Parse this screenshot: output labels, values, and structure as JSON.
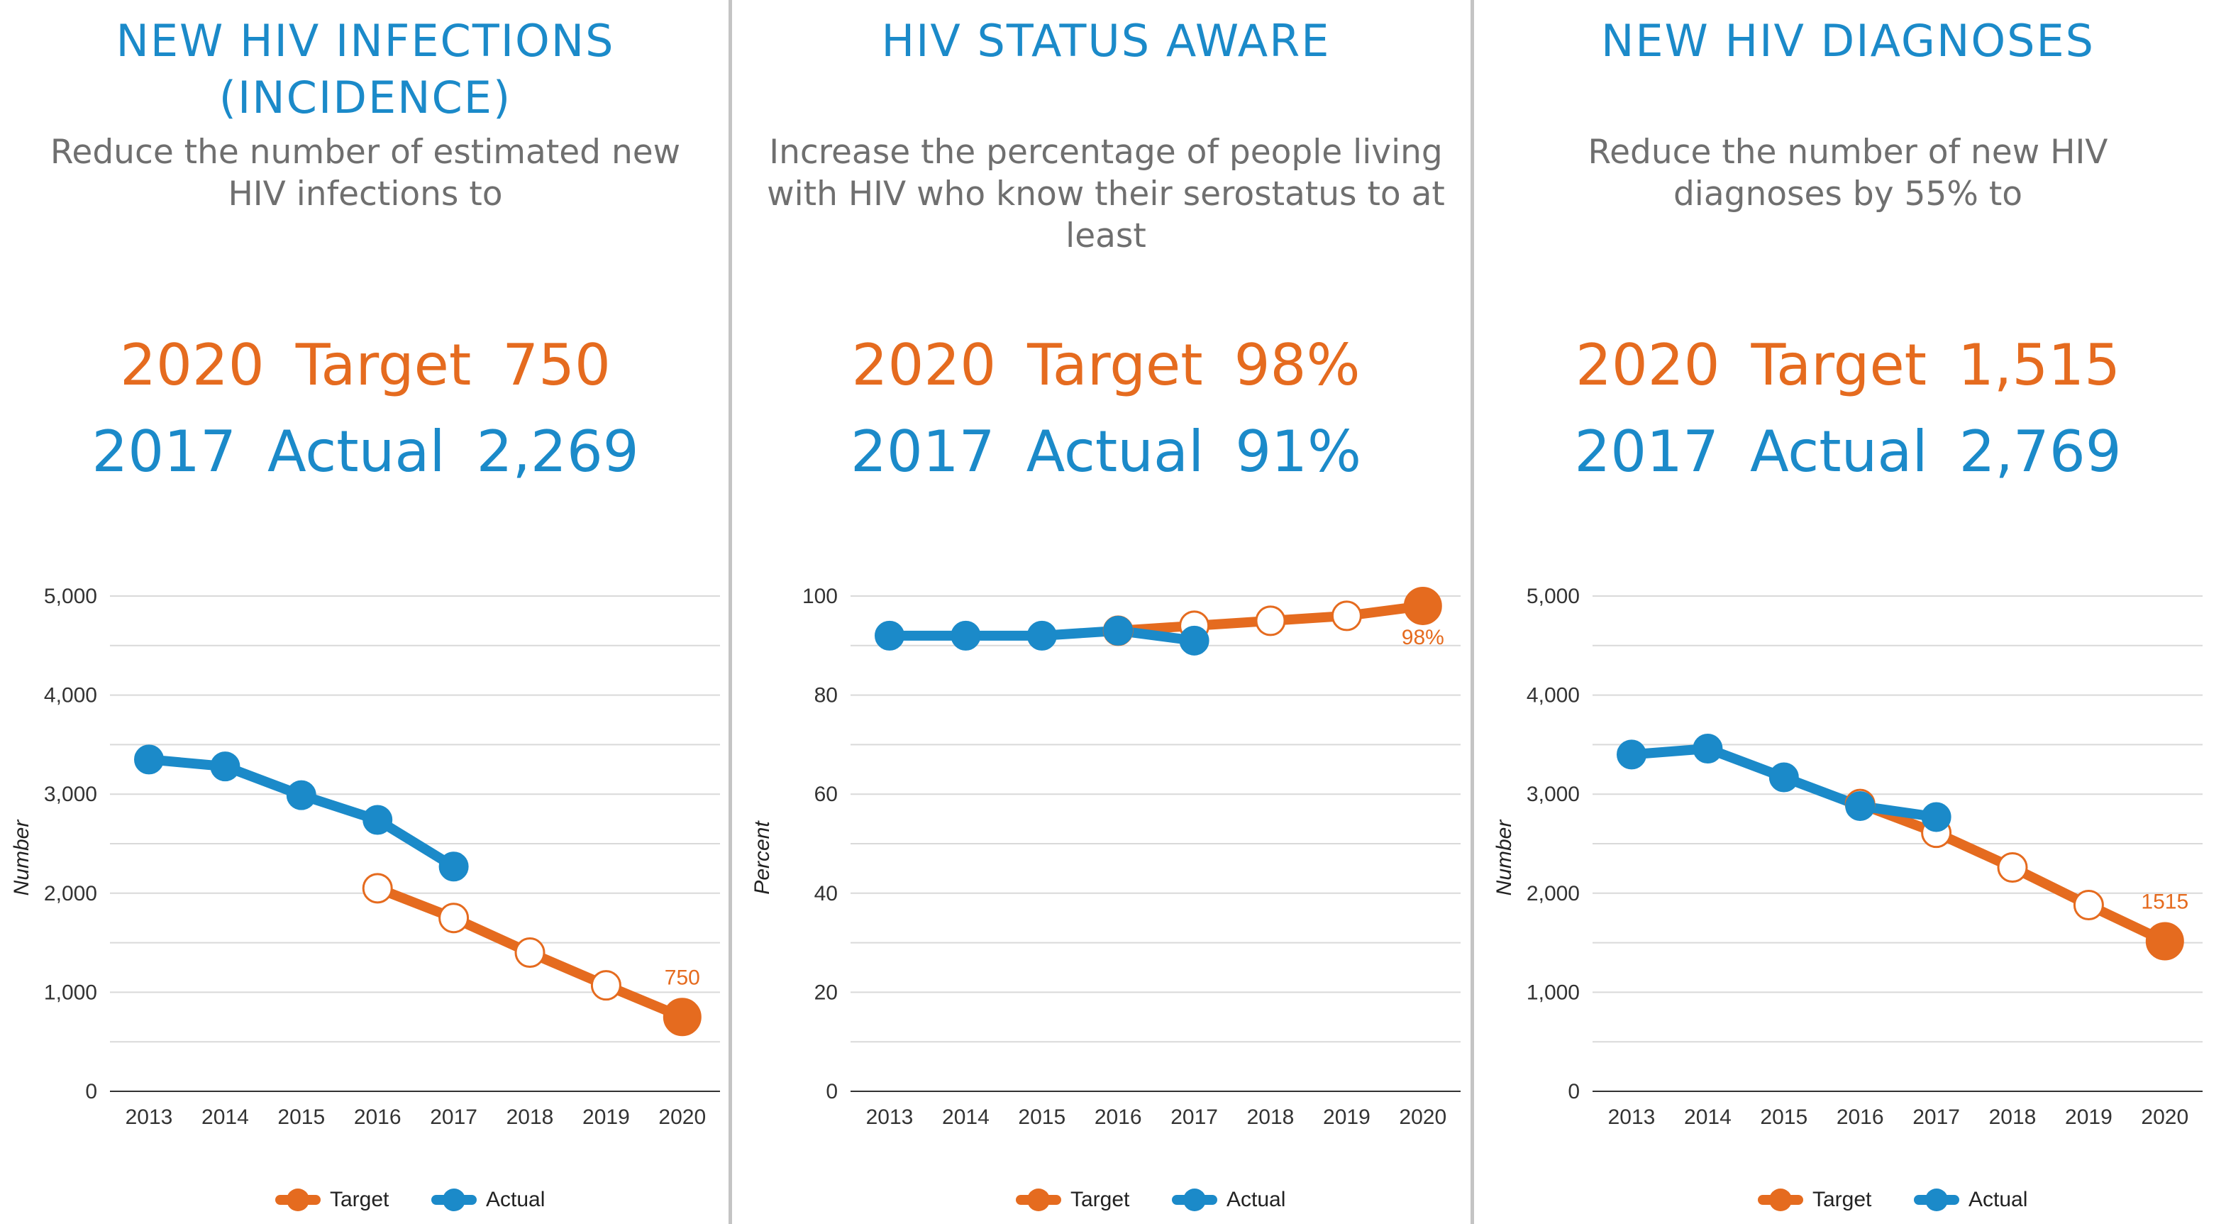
{
  "colors": {
    "target": "#e56b1f",
    "actual": "#1b8ac9",
    "grid": "#d9d9d9",
    "divider": "#c4c4c4"
  },
  "legend": {
    "target": "Target",
    "actual": "Actual"
  },
  "panels": [
    {
      "title_lines": [
        "NEW HIV INFECTIONS",
        "(INCIDENCE)"
      ],
      "subtitle": "Reduce the number of estimated new HIV infections to",
      "target_year": "2020",
      "target_label": "Target",
      "target_value": "750",
      "actual_year": "2017",
      "actual_label": "Actual",
      "actual_value": "2,269"
    },
    {
      "title_lines": [
        "HIV STATUS AWARE"
      ],
      "subtitle": "Increase the percentage of people living with HIV who know their serostatus to at least",
      "target_year": "2020",
      "target_label": "Target",
      "target_value": "98%",
      "actual_year": "2017",
      "actual_label": "Actual",
      "actual_value": "91%"
    },
    {
      "title_lines": [
        "NEW HIV DIAGNOSES"
      ],
      "subtitle": "Reduce the number of new HIV diagnoses by 55% to",
      "target_year": "2020",
      "target_label": "Target",
      "target_value": "1,515",
      "actual_year": "2017",
      "actual_label": "Actual",
      "actual_value": "2,769"
    }
  ],
  "chart_data": [
    {
      "type": "line",
      "title": "NEW HIV INFECTIONS (INCIDENCE)",
      "xlabel": "",
      "ylabel": "Number",
      "x": [
        "2013",
        "2014",
        "2015",
        "2016",
        "2017",
        "2018",
        "2019",
        "2020"
      ],
      "ylim": [
        0,
        5000
      ],
      "yticks": [
        0,
        1000,
        2000,
        3000,
        4000,
        5000
      ],
      "ytick_labels": [
        "0",
        "1,000",
        "2,000",
        "3,000",
        "4,000",
        "5,000"
      ],
      "grid": true,
      "legend_position": "bottom",
      "series": [
        {
          "name": "Target",
          "values": [
            null,
            null,
            null,
            2050,
            1750,
            1400,
            1070,
            750
          ],
          "highlight_label": "750"
        },
        {
          "name": "Actual",
          "values": [
            3350,
            3280,
            2990,
            2740,
            2269,
            null,
            null,
            null
          ]
        }
      ]
    },
    {
      "type": "line",
      "title": "HIV STATUS AWARE",
      "xlabel": "",
      "ylabel": "Percent",
      "x": [
        "2013",
        "2014",
        "2015",
        "2016",
        "2017",
        "2018",
        "2019",
        "2020"
      ],
      "ylim": [
        0,
        100
      ],
      "yticks": [
        0,
        20,
        40,
        60,
        80,
        100
      ],
      "ytick_labels": [
        "0",
        "20",
        "40",
        "60",
        "80",
        "100"
      ],
      "grid": true,
      "legend_position": "bottom",
      "series": [
        {
          "name": "Target",
          "values": [
            null,
            null,
            null,
            93,
            94,
            95,
            96,
            98
          ],
          "highlight_label": "98%"
        },
        {
          "name": "Actual",
          "values": [
            92,
            92,
            92,
            93,
            91,
            null,
            null,
            null
          ]
        }
      ]
    },
    {
      "type": "line",
      "title": "NEW HIV DIAGNOSES",
      "xlabel": "",
      "ylabel": "Number",
      "x": [
        "2013",
        "2014",
        "2015",
        "2016",
        "2017",
        "2018",
        "2019",
        "2020"
      ],
      "ylim": [
        0,
        5000
      ],
      "yticks": [
        0,
        1000,
        2000,
        3000,
        4000,
        5000
      ],
      "ytick_labels": [
        "0",
        "1,000",
        "2,000",
        "3,000",
        "4,000",
        "5,000"
      ],
      "grid": true,
      "legend_position": "bottom",
      "series": [
        {
          "name": "Target",
          "values": [
            null,
            null,
            null,
            2900,
            2610,
            2260,
            1880,
            1515
          ],
          "highlight_label": "1515"
        },
        {
          "name": "Actual",
          "values": [
            3400,
            3460,
            3170,
            2880,
            2769,
            null,
            null,
            null
          ]
        }
      ]
    }
  ]
}
